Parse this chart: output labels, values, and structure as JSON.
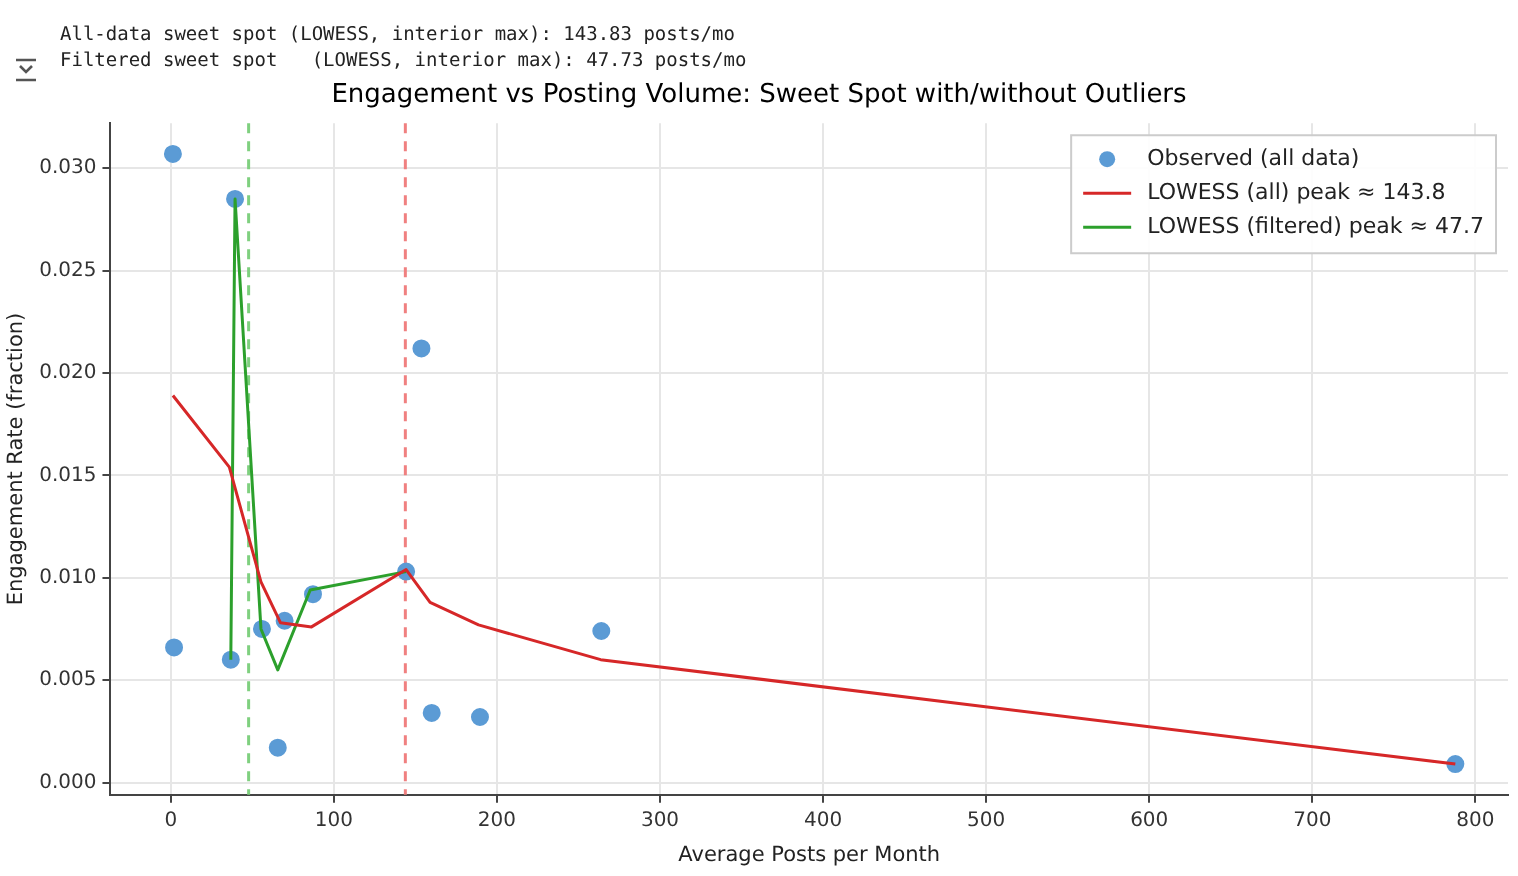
{
  "chart_data": {
    "type": "scatter",
    "title": "Engagement vs Posting Volume: Sweet Spot with/without Outliers",
    "xlabel": "Average Posts per Month",
    "ylabel": "Engagement Rate (fraction)",
    "annotations": [
      "All-data sweet spot (LOWESS, interior max): 143.83 posts/mo",
      "Filtered sweet spot   (LOWESS, interior max): 47.73 posts/mo"
    ],
    "xlim": [
      -37,
      820
    ],
    "xticks": [
      0,
      100,
      200,
      300,
      400,
      500,
      600,
      700,
      800
    ],
    "ylim": [
      -0.0006,
      0.0322
    ],
    "yticks": [
      {
        "value": 0,
        "label": "0.000"
      },
      {
        "value": 0.005,
        "label": "0.005"
      },
      {
        "value": 0.01,
        "label": "0.010"
      },
      {
        "value": 0.015,
        "label": "0.015"
      },
      {
        "value": 0.02,
        "label": "0.020"
      },
      {
        "value": 0.025,
        "label": "0.025"
      },
      {
        "value": 0.03,
        "label": "0.030"
      }
    ],
    "grid": true,
    "legend": "top right",
    "series": [
      {
        "name": "Observed (all data)",
        "type": "scatter",
        "marker": "circle",
        "color": "#5b9bd5",
        "x": [
          1.3,
          39.4,
          153.7,
          2,
          36.8,
          55.9,
          69.8,
          87.2,
          144.3,
          65.6,
          160,
          189.6,
          264,
          787.7
        ],
        "values": [
          0.0307,
          0.0285,
          0.0212,
          0.0066,
          0.006,
          0.0075,
          0.0079,
          0.0092,
          0.0103,
          0.0017,
          0.0034,
          0.0032,
          0.0074,
          0.0009
        ]
      },
      {
        "name": "LOWESS (all) peak ≈ 143.8",
        "type": "line",
        "marker": "none",
        "color": "#d62728",
        "x": [
          1.3,
          35.9,
          55.3,
          67.3,
          86.3,
          144.3,
          159,
          188.7,
          263.6,
          787.7
        ],
        "values": [
          0.0189,
          0.0154,
          0.0098,
          0.0078,
          0.0076,
          0.0104,
          0.0088,
          0.0077,
          0.006,
          0.0009
        ]
      },
      {
        "name": "LOWESS (filtered) peak ≈ 47.7",
        "type": "line",
        "marker": "none",
        "color": "#2ca02c",
        "x": [
          36.8,
          39.4,
          55.3,
          65.6,
          85.5,
          144.3
        ],
        "values": [
          0.006,
          0.0285,
          0.0075,
          0.0055,
          0.0094,
          0.0103
        ]
      }
    ],
    "ref_lines": [
      {
        "axis": "x",
        "value": 47.73,
        "color": "#7fd07f",
        "line_style": "dashed"
      },
      {
        "axis": "x",
        "value": 143.83,
        "color": "#f08080",
        "line_style": "dashed"
      }
    ]
  }
}
